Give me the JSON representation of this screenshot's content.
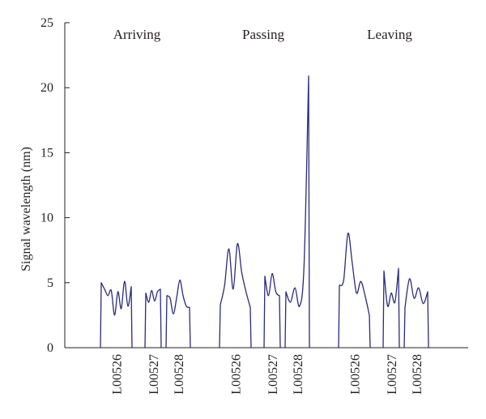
{
  "chart_data": {
    "type": "line",
    "title": "",
    "xlabel": "",
    "ylabel": "Signal wavelength (nm)",
    "ylim": [
      0,
      25
    ],
    "yticks": [
      0,
      5,
      10,
      15,
      20,
      25
    ],
    "grid": false,
    "groups": [
      {
        "label": "Arriving",
        "segments": [
          {
            "category": "L00526",
            "values": [
              0,
              5.0,
              4.5,
              4.0,
              4.4,
              2.5,
              4.3,
              3.0,
              5.1,
              3.2,
              4.7,
              0
            ]
          },
          {
            "category": "L00527",
            "values": [
              0,
              4.2,
              3.5,
              4.4,
              3.6,
              4.3,
              4.5,
              0
            ]
          },
          {
            "category": "L00528",
            "values": [
              0,
              4.0,
              3.8,
              2.6,
              3.8,
              5.2,
              4.0,
              3.2,
              3.1,
              0
            ]
          }
        ]
      },
      {
        "label": "Passing",
        "segments": [
          {
            "category": "L00526",
            "values": [
              0,
              3.3,
              4.8,
              7.6,
              4.5,
              8.0,
              5.8,
              4.3,
              3.1,
              0
            ]
          },
          {
            "category": "L00527",
            "values": [
              0,
              5.5,
              4.0,
              5.7,
              4.3,
              4.0,
              0
            ]
          },
          {
            "category": "L00528",
            "values": [
              0,
              4.3,
              3.5,
              4.6,
              3.2,
              6.4,
              20.9,
              0
            ]
          }
        ]
      },
      {
        "label": "Leaving",
        "segments": [
          {
            "category": "L00526",
            "values": [
              0,
              4.8,
              5.2,
              8.8,
              6.5,
              4.2,
              5.1,
              4.0,
              2.5,
              0
            ]
          },
          {
            "category": "L00527",
            "values": [
              0,
              5.9,
              3.2,
              4.2,
              3.5,
              6.1,
              0
            ]
          },
          {
            "category": "L00528",
            "values": [
              0,
              3.1,
              5.3,
              3.8,
              4.6,
              3.4,
              4.3,
              0
            ]
          }
        ]
      }
    ]
  }
}
